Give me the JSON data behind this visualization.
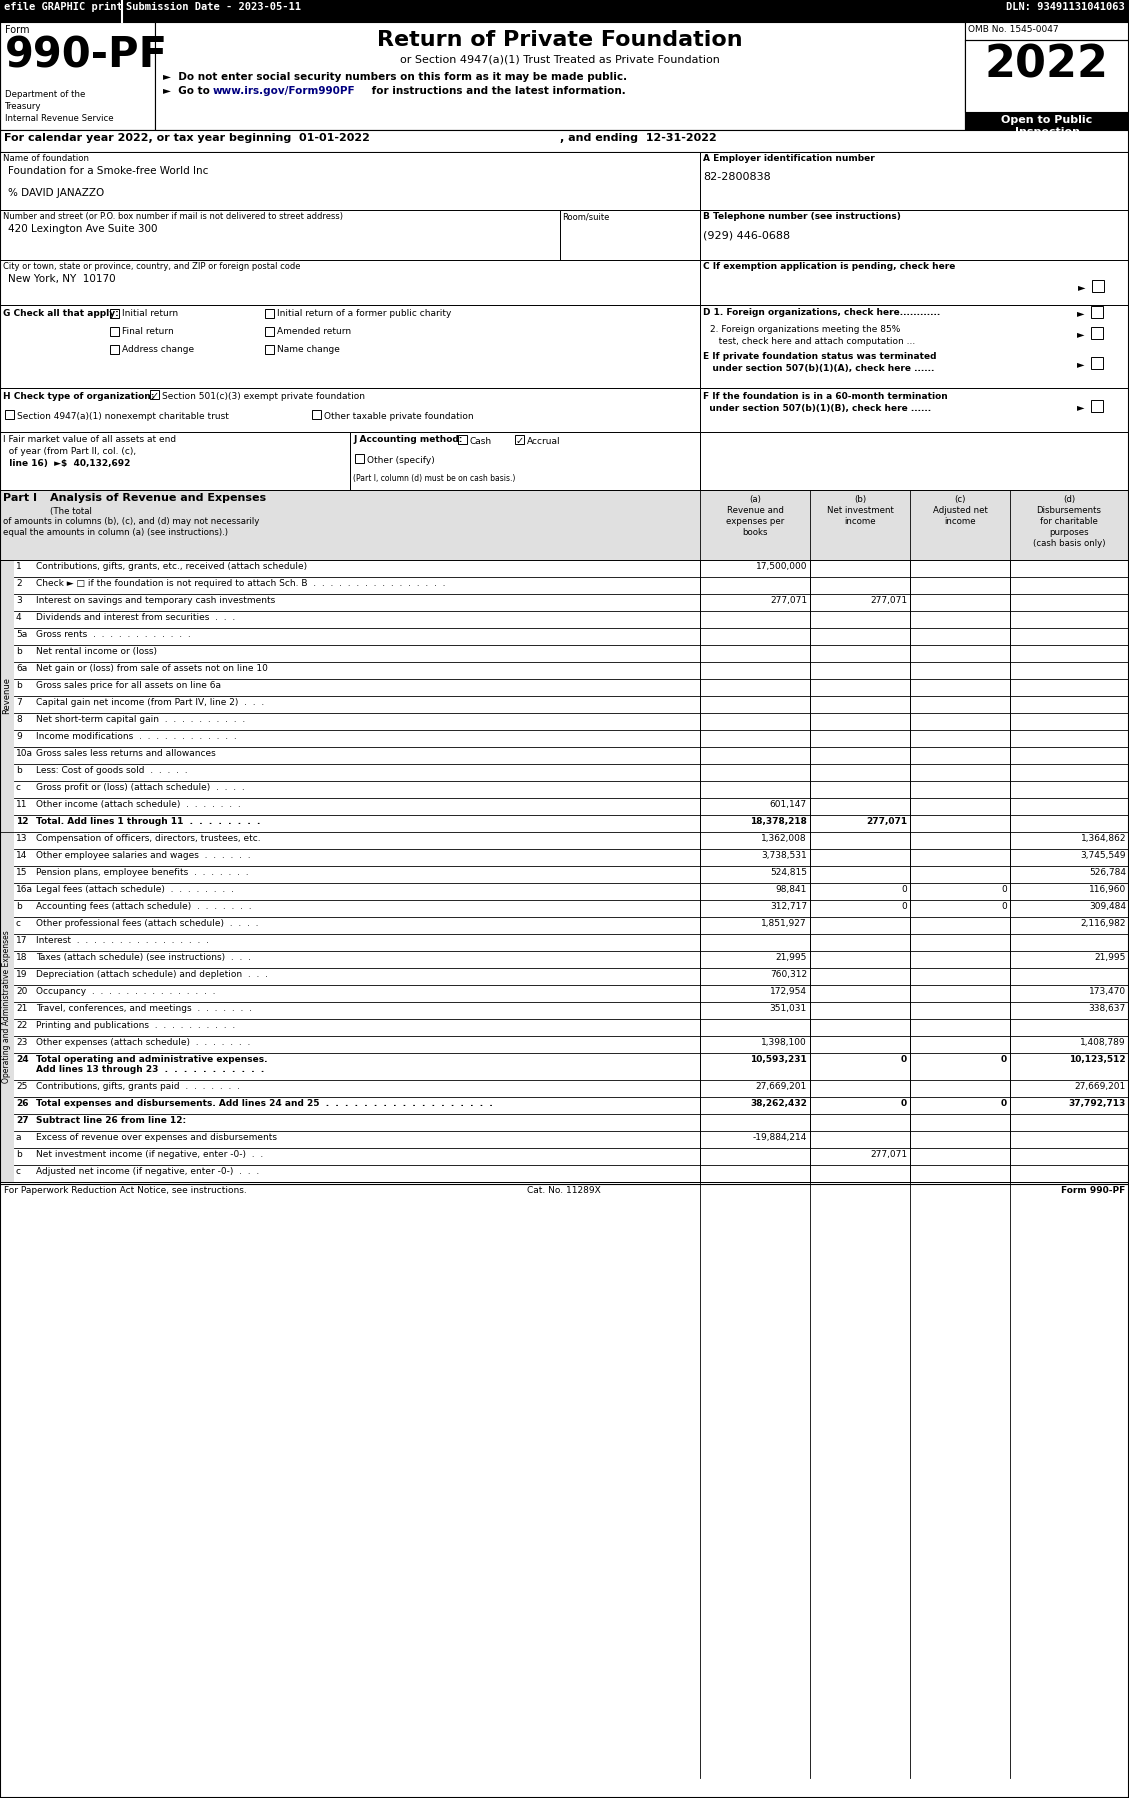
{
  "fig_w": 11.29,
  "fig_h": 17.98,
  "dpi": 100,
  "rows": [
    {
      "num": "1",
      "label": "Contributions, gifts, grants, etc., received (attach schedule)",
      "a": "17,500,000",
      "b": "",
      "c": "",
      "d": ""
    },
    {
      "num": "2",
      "label": "Check ► □ if the foundation is not required to attach Sch. B  .  .  .  .  .  .  .  .  .  .  .  .  .  .  .  .",
      "a": "",
      "b": "",
      "c": "",
      "d": ""
    },
    {
      "num": "3",
      "label": "Interest on savings and temporary cash investments",
      "a": "277,071",
      "b": "277,071",
      "c": "",
      "d": ""
    },
    {
      "num": "4",
      "label": "Dividends and interest from securities  .  .  .",
      "a": "",
      "b": "",
      "c": "",
      "d": ""
    },
    {
      "num": "5a",
      "label": "Gross rents  .  .  .  .  .  .  .  .  .  .  .  .",
      "a": "",
      "b": "",
      "c": "",
      "d": ""
    },
    {
      "num": "b",
      "label": "Net rental income or (loss)",
      "a": "",
      "b": "",
      "c": "",
      "d": ""
    },
    {
      "num": "6a",
      "label": "Net gain or (loss) from sale of assets not on line 10",
      "a": "",
      "b": "",
      "c": "",
      "d": ""
    },
    {
      "num": "b",
      "label": "Gross sales price for all assets on line 6a",
      "a": "",
      "b": "",
      "c": "",
      "d": ""
    },
    {
      "num": "7",
      "label": "Capital gain net income (from Part IV, line 2)  .  .  .",
      "a": "",
      "b": "",
      "c": "",
      "d": ""
    },
    {
      "num": "8",
      "label": "Net short-term capital gain  .  .  .  .  .  .  .  .  .  .",
      "a": "",
      "b": "",
      "c": "",
      "d": ""
    },
    {
      "num": "9",
      "label": "Income modifications  .  .  .  .  .  .  .  .  .  .  .  .",
      "a": "",
      "b": "",
      "c": "",
      "d": ""
    },
    {
      "num": "10a",
      "label": "Gross sales less returns and allowances",
      "a": "",
      "b": "",
      "c": "",
      "d": ""
    },
    {
      "num": "b",
      "label": "Less: Cost of goods sold  .  .  .  .  .",
      "a": "",
      "b": "",
      "c": "",
      "d": ""
    },
    {
      "num": "c",
      "label": "Gross profit or (loss) (attach schedule)  .  .  .  .",
      "a": "",
      "b": "",
      "c": "",
      "d": ""
    },
    {
      "num": "11",
      "label": "Other income (attach schedule)  .  .  .  .  .  .  .",
      "a": "601,147",
      "b": "",
      "c": "",
      "d": ""
    },
    {
      "num": "12",
      "label": "Total. Add lines 1 through 11  .  .  .  .  .  .  .  .",
      "a": "18,378,218",
      "b": "277,071",
      "c": "",
      "d": "",
      "bold": true
    },
    {
      "num": "13",
      "label": "Compensation of officers, directors, trustees, etc.",
      "a": "1,362,008",
      "b": "",
      "c": "",
      "d": "1,364,862"
    },
    {
      "num": "14",
      "label": "Other employee salaries and wages  .  .  .  .  .  .",
      "a": "3,738,531",
      "b": "",
      "c": "",
      "d": "3,745,549"
    },
    {
      "num": "15",
      "label": "Pension plans, employee benefits  .  .  .  .  .  .  .",
      "a": "524,815",
      "b": "",
      "c": "",
      "d": "526,784"
    },
    {
      "num": "16a",
      "label": "Legal fees (attach schedule)  .  .  .  .  .  .  .  .",
      "a": "98,841",
      "b": "0",
      "c": "0",
      "d": "116,960"
    },
    {
      "num": "b",
      "label": "Accounting fees (attach schedule)  .  .  .  .  .  .  .",
      "a": "312,717",
      "b": "0",
      "c": "0",
      "d": "309,484"
    },
    {
      "num": "c",
      "label": "Other professional fees (attach schedule)  .  .  .  .",
      "a": "1,851,927",
      "b": "",
      "c": "",
      "d": "2,116,982"
    },
    {
      "num": "17",
      "label": "Interest  .  .  .  .  .  .  .  .  .  .  .  .  .  .  .  .",
      "a": "",
      "b": "",
      "c": "",
      "d": ""
    },
    {
      "num": "18",
      "label": "Taxes (attach schedule) (see instructions)  .  .  .",
      "a": "21,995",
      "b": "",
      "c": "",
      "d": "21,995"
    },
    {
      "num": "19",
      "label": "Depreciation (attach schedule) and depletion  .  .  .",
      "a": "760,312",
      "b": "",
      "c": "",
      "d": ""
    },
    {
      "num": "20",
      "label": "Occupancy  .  .  .  .  .  .  .  .  .  .  .  .  .  .  .",
      "a": "172,954",
      "b": "",
      "c": "",
      "d": "173,470"
    },
    {
      "num": "21",
      "label": "Travel, conferences, and meetings  .  .  .  .  .  .  .",
      "a": "351,031",
      "b": "",
      "c": "",
      "d": "338,637"
    },
    {
      "num": "22",
      "label": "Printing and publications  .  .  .  .  .  .  .  .  .  .",
      "a": "",
      "b": "",
      "c": "",
      "d": ""
    },
    {
      "num": "23",
      "label": "Other expenses (attach schedule)  .  .  .  .  .  .  .",
      "a": "1,398,100",
      "b": "",
      "c": "",
      "d": "1,408,789"
    },
    {
      "num": "24",
      "label": "Total operating and administrative expenses.\nAdd lines 13 through 23  .  .  .  .  .  .  .  .  .  .  .",
      "a": "10,593,231",
      "b": "0",
      "c": "0",
      "d": "10,123,512",
      "bold": true
    },
    {
      "num": "25",
      "label": "Contributions, gifts, grants paid  .  .  .  .  .  .  .",
      "a": "27,669,201",
      "b": "",
      "c": "",
      "d": "27,669,201"
    },
    {
      "num": "26",
      "label": "Total expenses and disbursements. Add lines 24 and 25  .  .  .  .  .  .  .  .  .  .  .  .  .  .  .  .  .  .",
      "a": "38,262,432",
      "b": "0",
      "c": "0",
      "d": "37,792,713",
      "bold": true
    },
    {
      "num": "27",
      "label": "Subtract line 26 from line 12:",
      "a": "",
      "b": "",
      "c": "",
      "d": "",
      "bold": true
    },
    {
      "num": "a",
      "label": "Excess of revenue over expenses and disbursements",
      "a": "-19,884,214",
      "b": "",
      "c": "",
      "d": ""
    },
    {
      "num": "b",
      "label": "Net investment income (if negative, enter -0-)  .  .",
      "a": "",
      "b": "277,071",
      "c": "",
      "d": ""
    },
    {
      "num": "c",
      "label": "Adjusted net income (if negative, enter -0-)  .  .  .",
      "a": "",
      "b": "",
      "c": "",
      "d": ""
    }
  ]
}
